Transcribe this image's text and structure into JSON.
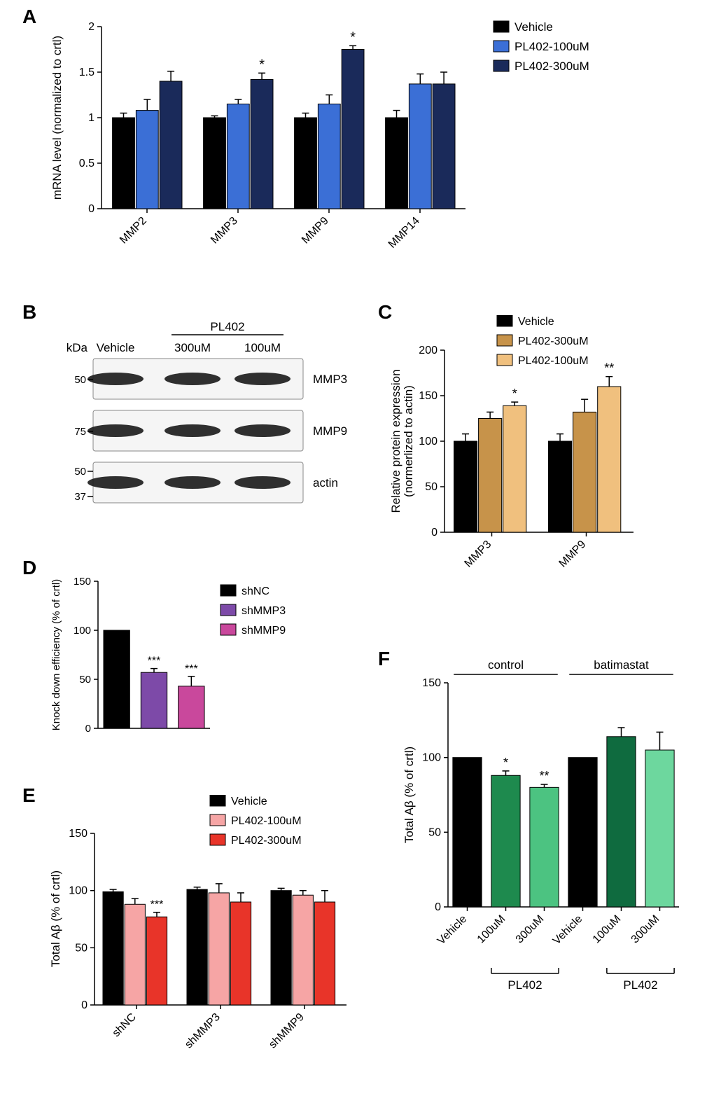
{
  "panelA": {
    "label": "A",
    "type": "bar",
    "ylabel": "mRNA level  (normalized to crtl)",
    "ylim": [
      0,
      2.0
    ],
    "ytick_step": 0.5,
    "categories": [
      "MMP2",
      "MMP3",
      "MMP9",
      "MMP14"
    ],
    "series": [
      {
        "name": "Vehicle",
        "color": "#000000",
        "values": [
          1.0,
          1.0,
          1.0,
          1.0
        ],
        "errors": [
          0.05,
          0.02,
          0.05,
          0.08
        ]
      },
      {
        "name": "PL402-100uM",
        "color": "#3b6fd6",
        "values": [
          1.08,
          1.15,
          1.15,
          1.37
        ],
        "errors": [
          0.12,
          0.05,
          0.1,
          0.11
        ]
      },
      {
        "name": "PL402-300uM",
        "color": "#1a2a5a",
        "values": [
          1.4,
          1.42,
          1.75,
          1.37
        ],
        "errors": [
          0.11,
          0.07,
          0.04,
          0.13
        ]
      }
    ],
    "annotations": [
      {
        "cat": 1,
        "series": 2,
        "text": "*"
      },
      {
        "cat": 2,
        "series": 2,
        "text": "*"
      }
    ],
    "bar_width": 0.26,
    "label_fontsize": 17,
    "tick_fontsize": 16,
    "legend_fontsize": 17,
    "background_color": "#ffffff"
  },
  "panelB": {
    "label": "B",
    "header_top": "PL402",
    "lanes": [
      "Vehicle",
      "300uM",
      "100uM"
    ],
    "rows": [
      {
        "label": "MMP3",
        "kDa_left": [
          "50"
        ]
      },
      {
        "label": "MMP9",
        "kDa_left": [
          "75"
        ]
      },
      {
        "label": "actin",
        "kDa_left": [
          "50",
          "37"
        ]
      }
    ],
    "kDa_label": "kDa",
    "label_fontsize": 17
  },
  "panelC": {
    "label": "C",
    "type": "bar",
    "ylabel": "Relative protein expression\n(normerlized to actin)",
    "ylim": [
      0,
      200
    ],
    "ytick_step": 50,
    "categories": [
      "MMP3",
      "MMP9"
    ],
    "series": [
      {
        "name": "Vehicle",
        "color": "#000000",
        "values": [
          100,
          100
        ],
        "errors": [
          8,
          8
        ]
      },
      {
        "name": "PL402-300uM",
        "color": "#c7934a",
        "values": [
          125,
          132
        ],
        "errors": [
          7,
          14
        ]
      },
      {
        "name": "PL402-100uM",
        "color": "#f0c07e",
        "values": [
          139,
          160
        ],
        "errors": [
          4,
          11
        ]
      }
    ],
    "annotations": [
      {
        "cat": 0,
        "series": 2,
        "text": "*"
      },
      {
        "cat": 1,
        "series": 2,
        "text": "**"
      }
    ],
    "bar_width": 0.26,
    "label_fontsize": 17,
    "tick_fontsize": 16,
    "legend_fontsize": 16
  },
  "panelD": {
    "label": "D",
    "type": "bar",
    "ylabel": "Knock down efficiency  (% of crtl)",
    "ylim": [
      0,
      150
    ],
    "ytick_step": 50,
    "items": [
      {
        "name": "shNC",
        "color": "#000000",
        "value": 100,
        "error": 0,
        "sig": ""
      },
      {
        "name": "shMMP3",
        "color": "#7d4aa8",
        "value": 57,
        "error": 4,
        "sig": "***"
      },
      {
        "name": "shMMP9",
        "color": "#c9489c",
        "value": 43,
        "error": 10,
        "sig": "***"
      }
    ],
    "bar_width": 0.7,
    "label_fontsize": 16,
    "tick_fontsize": 15,
    "legend_fontsize": 16
  },
  "panelE": {
    "label": "E",
    "type": "bar",
    "ylabel": "Total Aβ (% of crtl)",
    "ylim": [
      0,
      150
    ],
    "ytick_step": 50,
    "categories": [
      "shNC",
      "shMMP3",
      "shMMP9"
    ],
    "series": [
      {
        "name": "Vehicle",
        "color": "#000000",
        "values": [
          99,
          101,
          100
        ],
        "errors": [
          2,
          2,
          2
        ]
      },
      {
        "name": "PL402-100uM",
        "color": "#f6a5a5",
        "values": [
          88,
          98,
          96
        ],
        "errors": [
          5,
          8,
          4
        ]
      },
      {
        "name": "PL402-300uM",
        "color": "#e83429",
        "values": [
          77,
          90,
          90
        ],
        "errors": [
          4,
          8,
          10
        ]
      }
    ],
    "annotations": [
      {
        "cat": 0,
        "series": 2,
        "text": "***"
      }
    ],
    "bar_width": 0.26,
    "label_fontsize": 17,
    "tick_fontsize": 16,
    "legend_fontsize": 16
  },
  "panelF": {
    "label": "F",
    "type": "bar",
    "ylabel": "Total Aβ (% of crtl)",
    "ylim": [
      0,
      150
    ],
    "ytick_step": 50,
    "groups": [
      "control",
      "batimastat"
    ],
    "categories": [
      "Vehicle",
      "100uM",
      "300uM",
      "Vehicle",
      "100uM",
      "300uM"
    ],
    "sub_labels": [
      "PL402",
      "PL402"
    ],
    "colors": [
      "#000000",
      "#1e8a4e",
      "#4cc381",
      "#000000",
      "#0f6b3f",
      "#6dd79e"
    ],
    "values": [
      100,
      88,
      80,
      100,
      114,
      105
    ],
    "errors": [
      0,
      3,
      2,
      0,
      6,
      12
    ],
    "annotations": [
      {
        "idx": 1,
        "text": "*"
      },
      {
        "idx": 2,
        "text": "**"
      }
    ],
    "bar_width": 0.75,
    "label_fontsize": 17,
    "tick_fontsize": 16
  }
}
